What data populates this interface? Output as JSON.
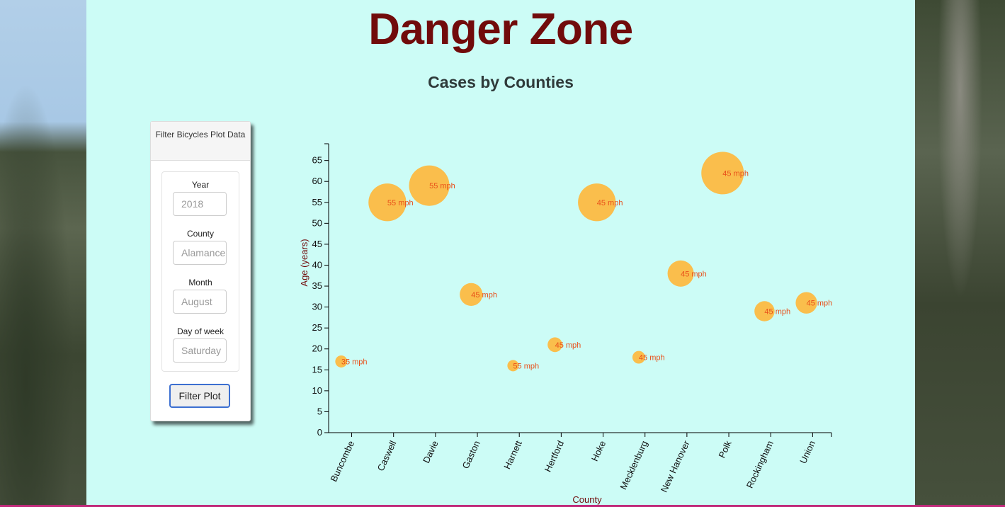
{
  "page": {
    "title": "Danger Zone",
    "subtitle": "Cases by Counties"
  },
  "filter_panel": {
    "heading": "Filter Bicycles Plot Data",
    "fields": [
      {
        "label": "Year",
        "placeholder": "2018"
      },
      {
        "label": "County",
        "placeholder": "Alamance"
      },
      {
        "label": "Month",
        "placeholder": "August"
      },
      {
        "label": "Day of week",
        "placeholder": "Saturday"
      }
    ],
    "button_label": "Filter Plot"
  },
  "colors": {
    "title": "#710b0b",
    "bubble": "#ffb73a",
    "bubble_label": "#e8501a",
    "axis_label": "#710b0b",
    "background": "#ccfcf6"
  },
  "chart_data": {
    "type": "scatter",
    "xlabel": "County",
    "ylabel": "Age (years)",
    "ylim": [
      0,
      65
    ],
    "yticks": [
      0,
      5,
      10,
      15,
      20,
      25,
      30,
      35,
      40,
      45,
      50,
      55,
      60,
      65
    ],
    "categories": [
      "Buncombe",
      "Caswell",
      "Davie",
      "Gaston",
      "Harnett",
      "Hertford",
      "Hoke",
      "Mecklenburg",
      "New Hanover",
      "Polk",
      "Rockingham",
      "Union"
    ],
    "points": [
      {
        "x": 0.2,
        "y": 17,
        "label": "35 mph",
        "speed": 35
      },
      {
        "x": 1.3,
        "y": 55,
        "label": "55 mph",
        "speed": 55
      },
      {
        "x": 2.3,
        "y": 59,
        "label": "55 mph",
        "speed": 55
      },
      {
        "x": 3.3,
        "y": 33,
        "label": "45 mph",
        "speed": 45
      },
      {
        "x": 4.3,
        "y": 16,
        "label": "55 mph",
        "speed": 55
      },
      {
        "x": 5.3,
        "y": 21,
        "label": "45 mph",
        "speed": 45
      },
      {
        "x": 6.3,
        "y": 55,
        "label": "45 mph",
        "speed": 45
      },
      {
        "x": 7.3,
        "y": 18,
        "label": "45 mph",
        "speed": 45
      },
      {
        "x": 8.3,
        "y": 38,
        "label": "45 mph",
        "speed": 45
      },
      {
        "x": 9.3,
        "y": 62,
        "label": "45 mph",
        "speed": 45
      },
      {
        "x": 10.3,
        "y": 29,
        "label": "45 mph",
        "speed": 45
      },
      {
        "x": 11.3,
        "y": 31,
        "label": "45 mph",
        "speed": 45
      }
    ],
    "grid": false,
    "legend": "none"
  }
}
